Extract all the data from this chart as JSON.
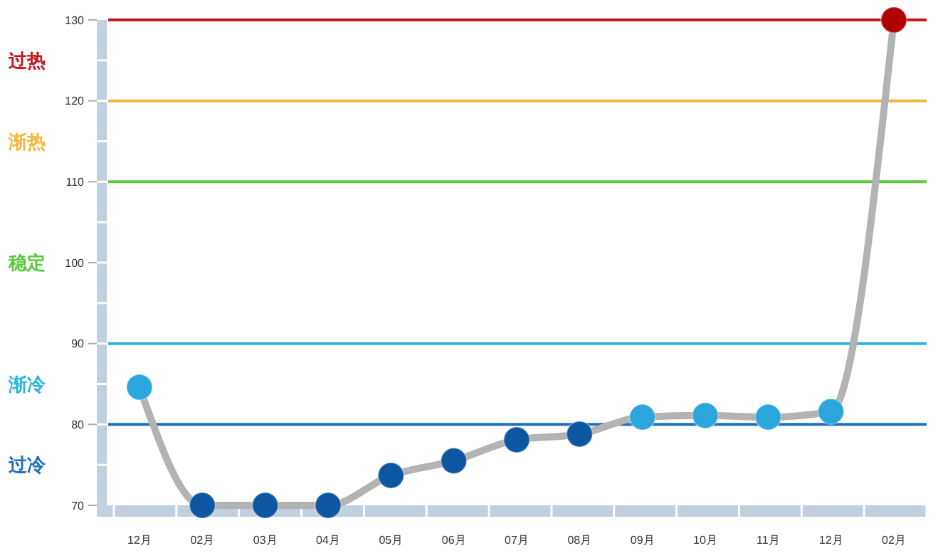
{
  "chart_data": {
    "type": "line",
    "categories": [
      "12月",
      "02月",
      "03月",
      "04月",
      "05月",
      "06月",
      "07月",
      "08月",
      "09月",
      "10月",
      "11月",
      "12月",
      "02月"
    ],
    "series": [
      {
        "color": "#b3b3b3",
        "values": [
          84.6,
          70,
          70,
          70,
          73.7,
          75.5,
          78.1,
          78.8,
          80.9,
          81.1,
          80.9,
          81.6,
          130
        ],
        "colors": [
          "#2aa6dc",
          "#0d56a0",
          "#0d56a0",
          "#0d56a0",
          "#0d56a0",
          "#0d56a0",
          "#0d56a0",
          "#0d56a0",
          "#2aa6dc",
          "#2aa6dc",
          "#2aa6dc",
          "#2aa6dc",
          "#b00000"
        ]
      }
    ],
    "ylim": [
      70,
      130
    ],
    "yticks": [
      70,
      80,
      90,
      100,
      110,
      120,
      130
    ],
    "marker": "circle",
    "grid": false,
    "ref_lines": [
      {
        "axis": "y",
        "value": 130,
        "label": "过热",
        "color": "#c8141e"
      },
      {
        "axis": "y",
        "value": 120,
        "label": "渐热",
        "color": "#f5b63a"
      },
      {
        "axis": "y",
        "value": 110,
        "label": "稳定",
        "color": "#5cc840"
      },
      {
        "axis": "y",
        "value": 90,
        "label": "渐冷",
        "color": "#2bb5e0"
      },
      {
        "axis": "y",
        "value": 80,
        "label": "过冷",
        "color": "#1f6fbf"
      }
    ]
  }
}
